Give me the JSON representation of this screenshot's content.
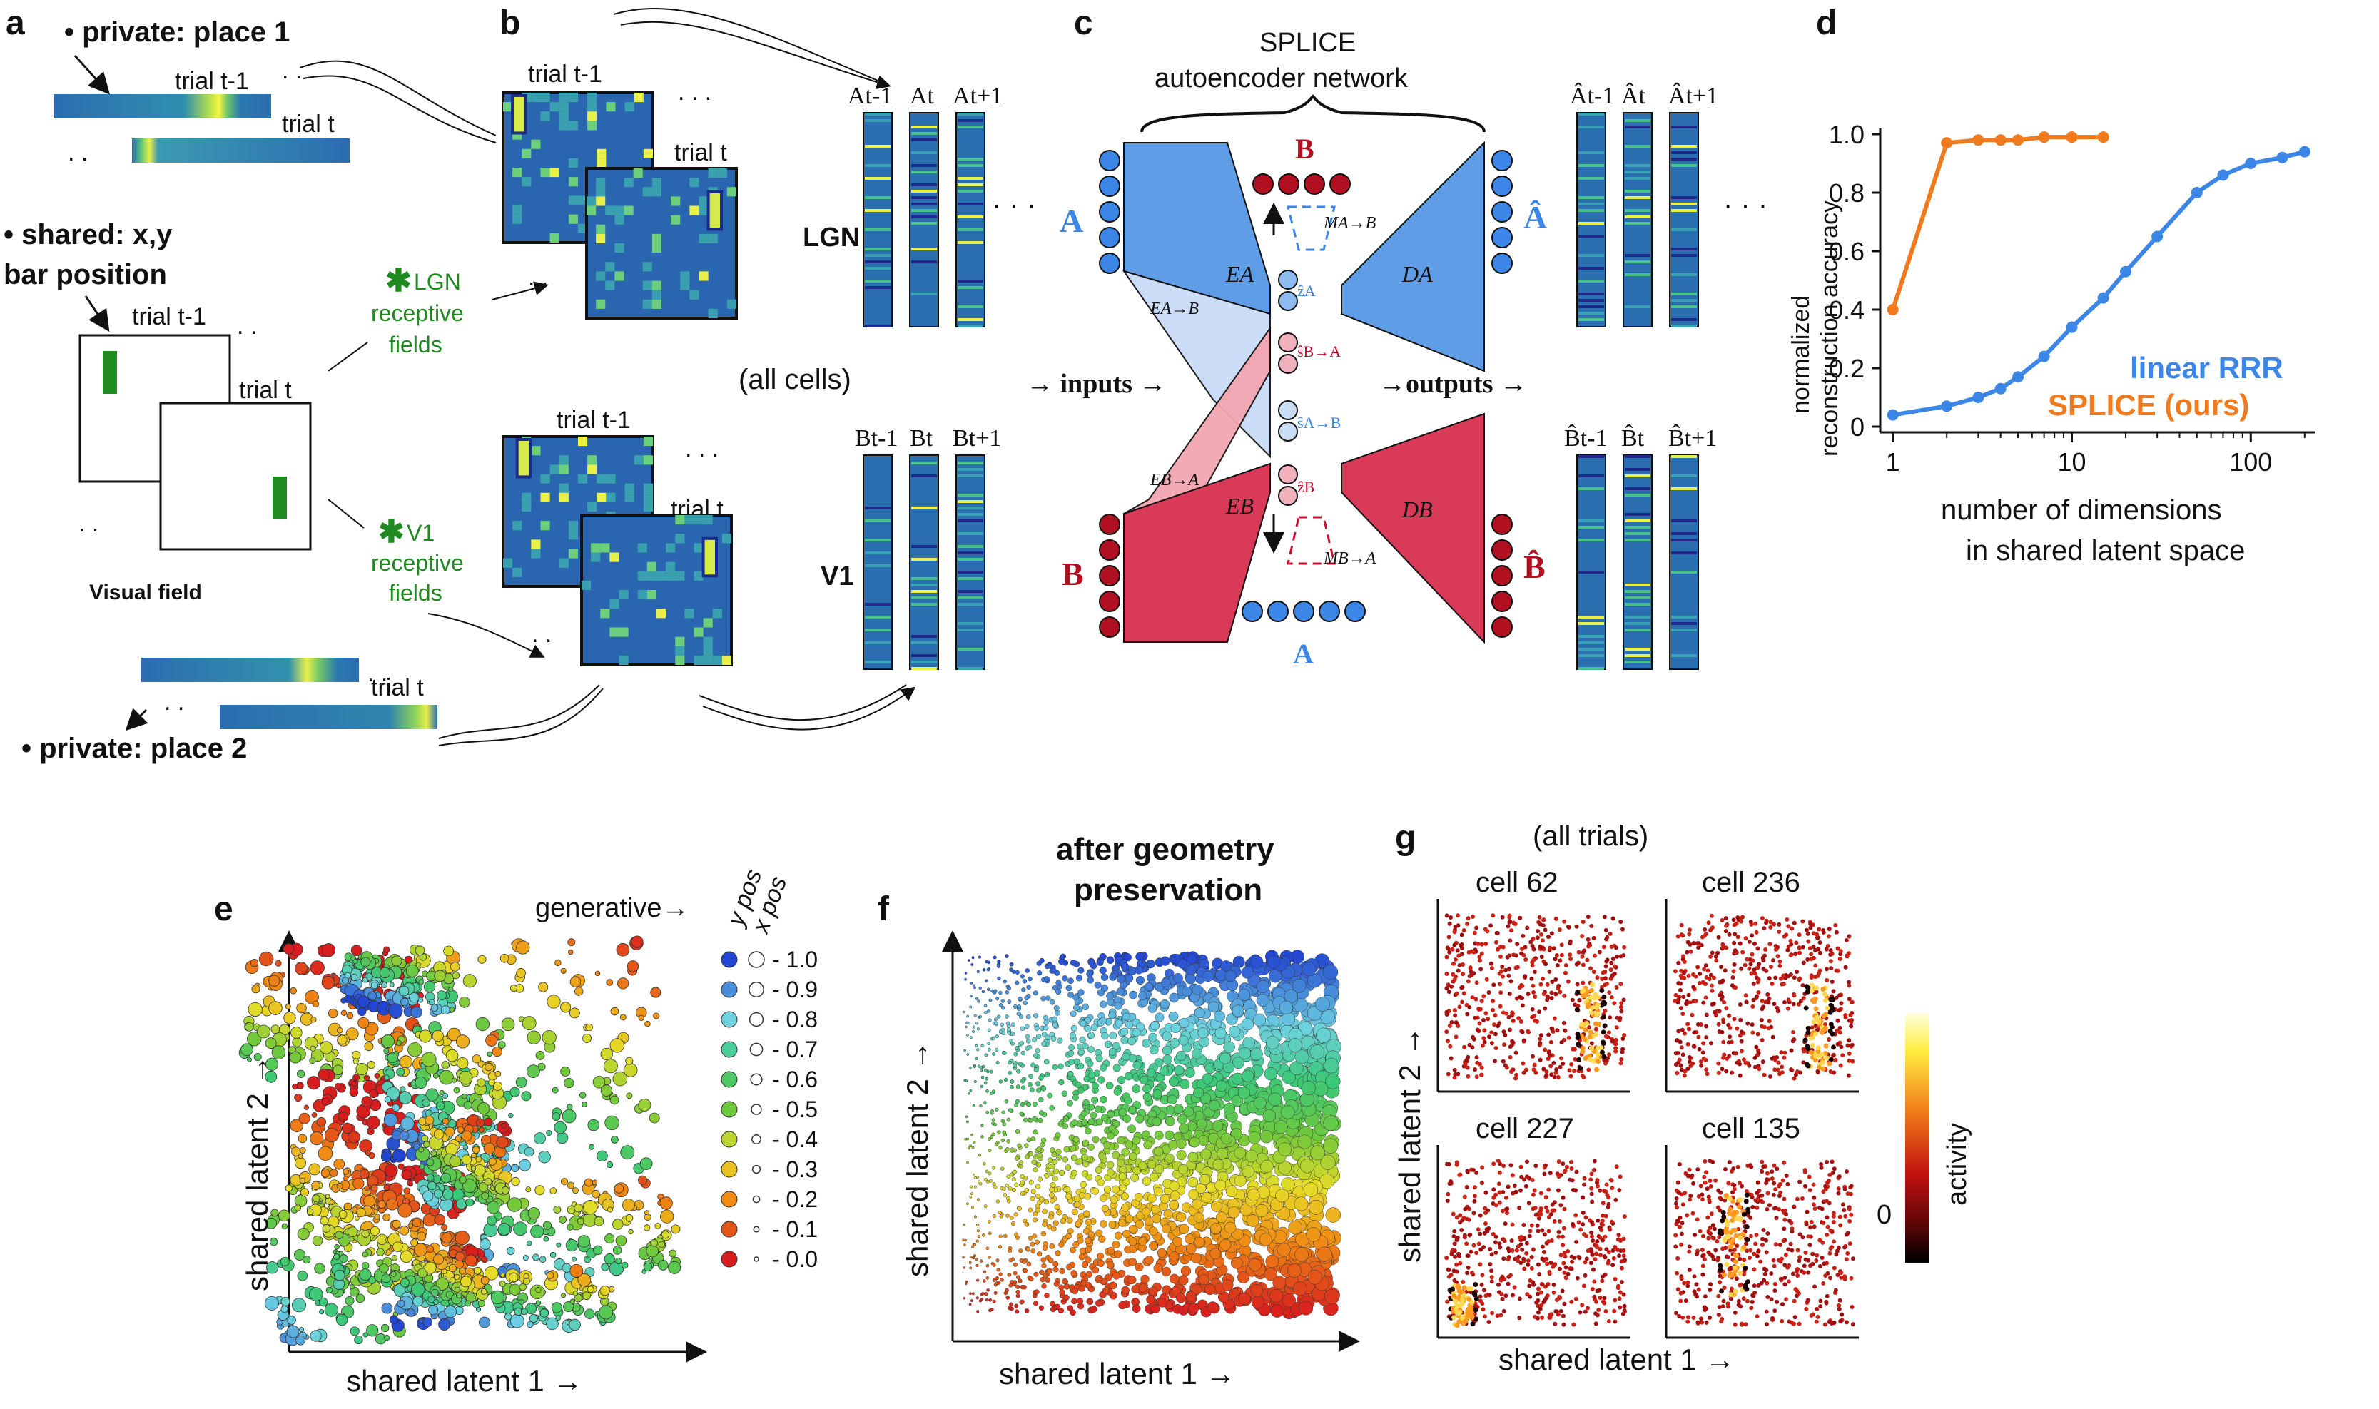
{
  "colors": {
    "blue": "#3b86e6",
    "orange": "#f07a1e",
    "green": "#1f8a1f",
    "red": "#c8102e",
    "strip_blue": "#2a6eb0",
    "encoder_blue": "#5f9ee6",
    "encoder_red": "#d83a58"
  },
  "panel_a": {
    "letter": "a",
    "private1": "• private: place 1",
    "private2": "• private: place 2",
    "shared_line1": "• shared: x,y",
    "shared_line2": "bar position",
    "trial_prev": "trial t-1",
    "trial_cur": "trial t",
    "visual_field": "Visual field"
  },
  "panel_b": {
    "letter": "b",
    "trial_prev": "trial t-1",
    "trial_cur": "trial t",
    "lgn_star": "✱",
    "lgn_label1": "LGN",
    "lgn_label2": "receptive",
    "lgn_label3": "fields",
    "v1_star": "✱",
    "v1_label1": "V1",
    "v1_label2": "receptive",
    "v1_label3": "fields",
    "lgn": "LGN",
    "v1": "V1",
    "all_cells": "(all cells)",
    "a_cols": [
      "At-1",
      "At",
      "At+1"
    ],
    "b_cols": [
      "Bt-1",
      "Bt",
      "Bt+1"
    ]
  },
  "panel_c": {
    "letter": "c",
    "title1": "SPLICE",
    "title2": "autoencoder network",
    "A": "A",
    "B": "B",
    "A_hat": "Â",
    "B_hat": "B̂",
    "E_A": "EA",
    "E_B": "EB",
    "D_A": "DA",
    "D_B": "DB",
    "E_AB": "EA→B",
    "E_BA": "EB→A",
    "M_AB": "MA→B",
    "M_BA": "MB→A",
    "z_A": "ẑA",
    "z_B": "ẑB",
    "s_BA": "ŝB→A",
    "s_AB": "ŝA→B",
    "inputs": "→ inputs →",
    "outputs": "→outputs →",
    "ahat_cols": [
      "Ât-1",
      "Ât",
      "Ât+1"
    ],
    "bhat_cols": [
      "B̂t-1",
      "B̂t",
      "B̂t+1"
    ]
  },
  "panel_d": {
    "letter": "d",
    "ylabel1": "normalized",
    "ylabel2": "reconstruction accuracy",
    "xlabel1": "number of dimensions",
    "xlabel2": "in shared latent space",
    "legend_rrr": "linear RRR",
    "legend_splice": "SPLICE (ours)"
  },
  "chart_data": {
    "type": "line",
    "title": "",
    "xlabel": "number of dimensions in shared latent space",
    "ylabel": "normalized reconstruction accuracy",
    "xscale": "log",
    "xlim": [
      0.85,
      230
    ],
    "ylim": [
      0,
      1.0
    ],
    "yticks": [
      "0",
      "0.2",
      "0.4",
      "0.6",
      "0.8",
      "1.0"
    ],
    "xticks": [
      "1",
      "10",
      "100"
    ],
    "series": [
      {
        "name": "linear RRR",
        "color": "#3b86e6",
        "x": [
          1,
          2,
          3,
          4,
          5,
          7,
          10,
          15,
          20,
          30,
          50,
          70,
          100,
          150,
          200
        ],
        "y": [
          0.04,
          0.07,
          0.1,
          0.13,
          0.17,
          0.24,
          0.34,
          0.44,
          0.53,
          0.65,
          0.8,
          0.86,
          0.9,
          0.92,
          0.94
        ]
      },
      {
        "name": "SPLICE (ours)",
        "color": "#f07a1e",
        "x": [
          1,
          2,
          3,
          4,
          5,
          7,
          10,
          15
        ],
        "y": [
          0.4,
          0.97,
          0.98,
          0.98,
          0.98,
          0.99,
          0.99,
          0.99
        ]
      }
    ]
  },
  "panel_e": {
    "letter": "e",
    "generative": "generative→",
    "ypos": "y pos",
    "xpos": "x pos",
    "levels": [
      "1.0",
      "0.9",
      "0.8",
      "0.7",
      "0.6",
      "0.5",
      "0.4",
      "0.3",
      "0.2",
      "0.1",
      "0.0"
    ],
    "xlabel": "shared latent 1 →",
    "ylabel": "shared latent 2 →"
  },
  "panel_f": {
    "letter": "f",
    "title1": "after geometry",
    "title2": "preservation",
    "xlabel": "shared latent 1 →",
    "ylabel": "shared latent 2 →"
  },
  "panel_g": {
    "letter": "g",
    "all_trials": "(all trials)",
    "cells": [
      "cell 62",
      "cell 236",
      "cell 227",
      "cell 135"
    ],
    "xlabel": "shared latent 1 →",
    "ylabel": "shared latent 2 →",
    "colorbar_label": "activity",
    "colorbar_zero": "0"
  }
}
